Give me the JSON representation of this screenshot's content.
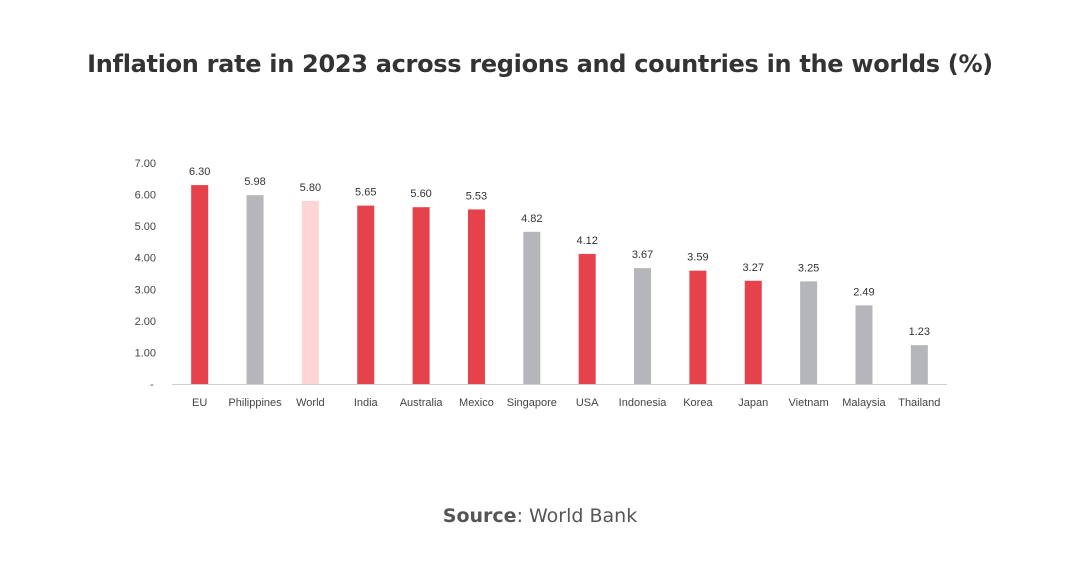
{
  "chart_data": {
    "type": "bar",
    "title": "Inflation rate in 2023 across regions and countries in the worlds (%)",
    "categories": [
      "EU",
      "Philippines",
      "World",
      "India",
      "Australia",
      "Mexico",
      "Singapore",
      "USA",
      "Indonesia",
      "Korea",
      "Japan",
      "Vietnam",
      "Malaysia",
      "Thailand"
    ],
    "values": [
      6.3,
      5.98,
      5.8,
      5.65,
      5.6,
      5.53,
      4.82,
      4.12,
      3.67,
      3.59,
      3.27,
      3.25,
      2.49,
      1.23
    ],
    "data_labels": [
      "6.30",
      "5.98",
      "5.80",
      "5.65",
      "5.60",
      "5.53",
      "4.82",
      "4.12",
      "3.67",
      "3.59",
      "3.27",
      "3.25",
      "2.49",
      "1.23"
    ],
    "bar_colors": [
      "#E5424B",
      "#B5B6B9",
      "#FDD5D6",
      "#E5424B",
      "#E5424B",
      "#E5424B",
      "#B5B6B9",
      "#E5424B",
      "#B5B6B9",
      "#E5424B",
      "#E5424B",
      "#B5B6B9",
      "#B5B6B9",
      "#B5B6B9"
    ],
    "yticks": [
      "-",
      "1.00",
      "2.00",
      "3.00",
      "4.00",
      "5.00",
      "6.00",
      "7.00"
    ],
    "ylim": [
      0,
      7
    ],
    "xlabel": "",
    "ylabel": "",
    "grid": false,
    "legend": "none"
  },
  "source": {
    "label": "Source",
    "text": ": World Bank"
  }
}
